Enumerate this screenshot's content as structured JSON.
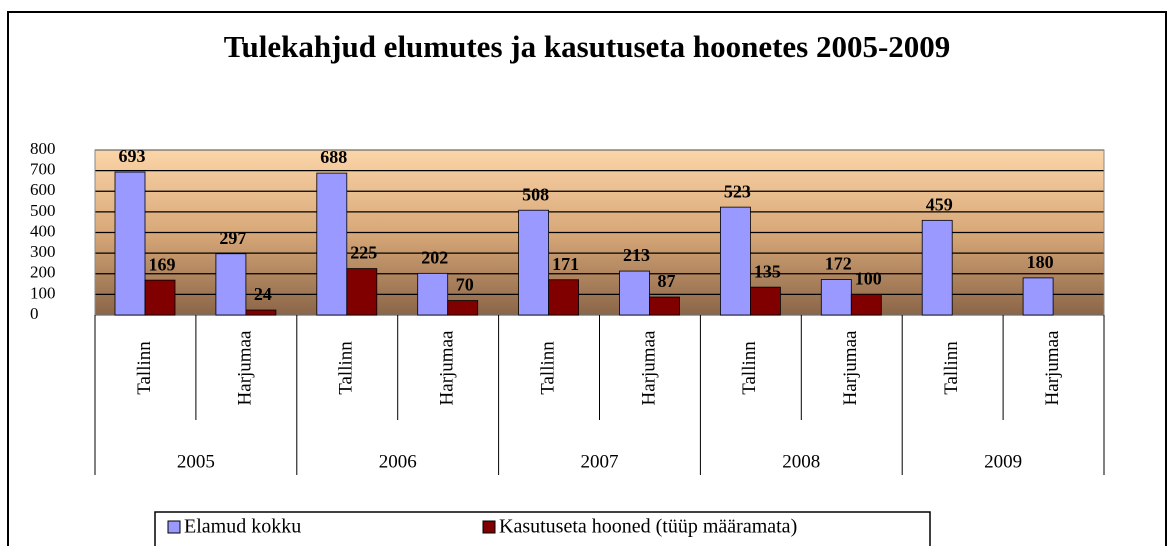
{
  "chart_data": {
    "type": "bar",
    "title": "Tulekahjud elumutes ja kasutuseta hoonetes 2005-2009",
    "categories": [
      "Tallinn",
      "Harjumaa",
      "Tallinn",
      "Harjumaa",
      "Tallinn",
      "Harjumaa",
      "Tallinn",
      "Harjumaa",
      "Tallinn",
      "Harjumaa"
    ],
    "category_groups": [
      "2005",
      "2006",
      "2007",
      "2008",
      "2009"
    ],
    "series": [
      {
        "name": "Elamud kokku",
        "color": "#9999ff",
        "values": [
          693,
          297,
          688,
          202,
          508,
          213,
          523,
          172,
          459,
          180
        ]
      },
      {
        "name": "Kasutuseta hooned (tüüp määramata)",
        "color": "#800000",
        "values": [
          169,
          24,
          225,
          70,
          171,
          87,
          135,
          100,
          null,
          null
        ]
      }
    ],
    "ylim": [
      0,
      800
    ],
    "yticks": [
      0,
      100,
      200,
      300,
      400,
      500,
      600,
      700,
      800
    ],
    "grid": true,
    "legend": "bottom"
  }
}
